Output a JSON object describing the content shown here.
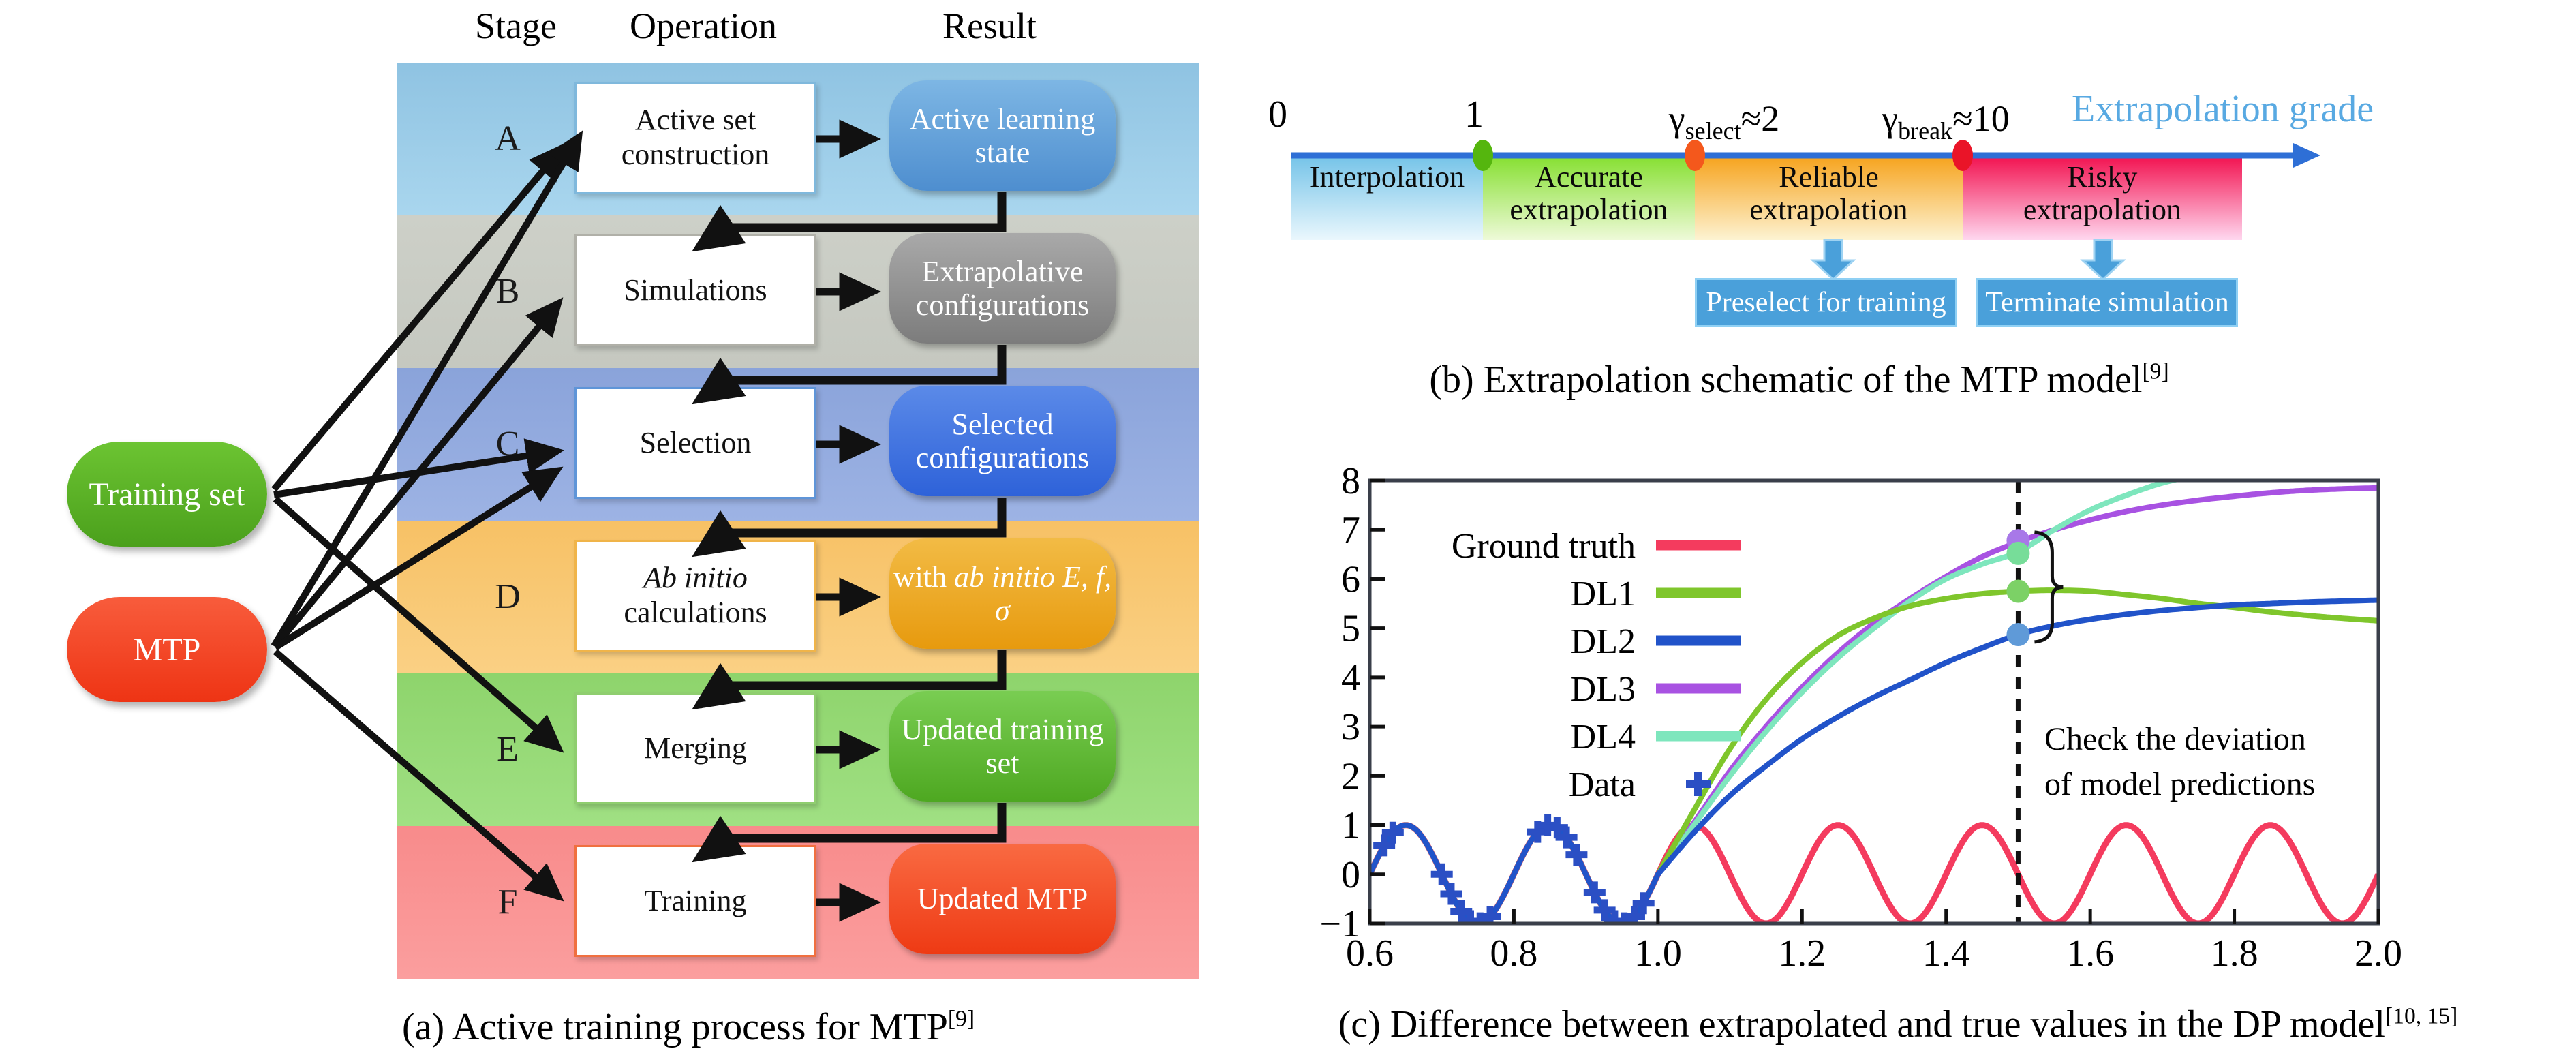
{
  "panel_a": {
    "caption": "(a) Active training process for MTP",
    "caption_ref": "[9]",
    "headers": {
      "stage": "Stage",
      "operation": "Operation",
      "result": "Result"
    },
    "inputs": [
      {
        "label": "Training set",
        "color": "#5cb82a"
      },
      {
        "label": "MTP",
        "color": "#f5472a"
      }
    ],
    "rows": [
      {
        "stage": "A",
        "operation": "Active set construction",
        "result": "Active learning state",
        "band_color": "#9ccbe6",
        "result_color": "#4e8ecf"
      },
      {
        "stage": "B",
        "operation": "Simulations",
        "result": "Extrapolative configurations",
        "band_color": "#c9ccc4",
        "result_color": "#7c7c7c"
      },
      {
        "stage": "C",
        "operation": "Selection",
        "result": "Selected configurations",
        "band_color": "#90a8dd",
        "result_color": "#2e62d9"
      },
      {
        "stage": "D",
        "operation_italic": "Ab initio",
        "operation": "calculations",
        "result_pre": "with",
        "result_italic": "ab initio",
        "result_math": "E, f, σ",
        "band_color": "#f8c870",
        "result_color": "#e79a0e"
      },
      {
        "stage": "E",
        "operation": "Merging",
        "result": "Updated training set",
        "band_color": "#97da78",
        "result_color": "#4ea821"
      },
      {
        "stage": "F",
        "operation": "Training",
        "result": "Updated MTP",
        "band_color": "#f99393",
        "result_color": "#ee3a14"
      }
    ]
  },
  "panel_b": {
    "caption": "(b) Extrapolation schematic of the MTP model",
    "caption_ref": "[9]",
    "axis_label": "Extrapolation grade",
    "axis_color": "#2e6fd6",
    "tick_zero": "0",
    "tick_one": "1",
    "gamma_select": {
      "symbol": "γ",
      "sub": "select",
      "value": "≈2"
    },
    "gamma_break": {
      "symbol": "γ",
      "sub": "break",
      "value": "≈10"
    },
    "zones": [
      {
        "line1": "Interpolation",
        "line2": "",
        "color": "#74c3e8"
      },
      {
        "line1": "Accurate",
        "line2": "extrapolation",
        "color": "#85df2f"
      },
      {
        "line1": "Reliable",
        "line2": "extrapolation",
        "color": "#f6a21b"
      },
      {
        "line1": "Risky",
        "line2": "extrapolation",
        "color": "#f2104e"
      }
    ],
    "markers": [
      {
        "at": "1",
        "color": "#55b60e"
      },
      {
        "at": "γ_select",
        "color": "#f4581c"
      },
      {
        "at": "γ_break",
        "color": "#ea1428"
      }
    ],
    "actions": [
      {
        "label": "Preselect for training"
      },
      {
        "label": "Terminate simulation"
      }
    ],
    "action_color": "#4aa0da"
  },
  "panel_c": {
    "caption": "(c) Difference between extrapolated and true values in the DP model",
    "caption_ref": "[10, 15]"
  },
  "chart_data": {
    "type": "line",
    "xlim": [
      0.6,
      2.0
    ],
    "ylim": [
      -1,
      8
    ],
    "x_ticks": [
      0.6,
      0.8,
      1.0,
      1.2,
      1.4,
      1.6,
      1.8,
      2.0
    ],
    "y_ticks": [
      -1,
      0,
      1,
      2,
      3,
      4,
      5,
      6,
      7,
      8
    ],
    "grid": false,
    "legend_position": "upper-left-inside",
    "ground_truth": {
      "name": "Ground truth",
      "color": "#f43b5e",
      "formula": "sin(10*pi*x)"
    },
    "series": [
      {
        "name": "DL1",
        "color": "#7fc62c",
        "sine_until": 1.0,
        "points": [
          [
            1.0,
            0
          ],
          [
            1.05,
            1.3
          ],
          [
            1.1,
            2.55
          ],
          [
            1.15,
            3.55
          ],
          [
            1.2,
            4.3
          ],
          [
            1.25,
            4.85
          ],
          [
            1.3,
            5.2
          ],
          [
            1.35,
            5.45
          ],
          [
            1.4,
            5.6
          ],
          [
            1.45,
            5.7
          ],
          [
            1.5,
            5.75
          ],
          [
            1.55,
            5.77
          ],
          [
            1.6,
            5.75
          ],
          [
            1.65,
            5.68
          ],
          [
            1.7,
            5.6
          ],
          [
            1.75,
            5.5
          ],
          [
            1.8,
            5.42
          ],
          [
            1.85,
            5.33
          ],
          [
            1.9,
            5.26
          ],
          [
            1.95,
            5.2
          ],
          [
            2.0,
            5.15
          ]
        ]
      },
      {
        "name": "DL2",
        "color": "#2153c9",
        "sine_until": 1.0,
        "points": [
          [
            1.0,
            0
          ],
          [
            1.05,
            0.85
          ],
          [
            1.1,
            1.6
          ],
          [
            1.15,
            2.2
          ],
          [
            1.2,
            2.75
          ],
          [
            1.25,
            3.2
          ],
          [
            1.3,
            3.6
          ],
          [
            1.35,
            3.95
          ],
          [
            1.4,
            4.3
          ],
          [
            1.45,
            4.6
          ],
          [
            1.5,
            4.87
          ],
          [
            1.55,
            5.05
          ],
          [
            1.6,
            5.18
          ],
          [
            1.65,
            5.28
          ],
          [
            1.7,
            5.36
          ],
          [
            1.75,
            5.42
          ],
          [
            1.8,
            5.47
          ],
          [
            1.85,
            5.5
          ],
          [
            1.9,
            5.53
          ],
          [
            1.95,
            5.55
          ],
          [
            2.0,
            5.57
          ]
        ]
      },
      {
        "name": "DL3",
        "color": "#a852e2",
        "sine_until": 1.0,
        "points": [
          [
            1.0,
            0
          ],
          [
            1.05,
            1.05
          ],
          [
            1.1,
            2.1
          ],
          [
            1.15,
            3.0
          ],
          [
            1.2,
            3.8
          ],
          [
            1.25,
            4.5
          ],
          [
            1.3,
            5.1
          ],
          [
            1.35,
            5.6
          ],
          [
            1.4,
            6.05
          ],
          [
            1.45,
            6.45
          ],
          [
            1.5,
            6.75
          ],
          [
            1.55,
            7.0
          ],
          [
            1.6,
            7.2
          ],
          [
            1.65,
            7.37
          ],
          [
            1.7,
            7.5
          ],
          [
            1.75,
            7.6
          ],
          [
            1.8,
            7.68
          ],
          [
            1.85,
            7.75
          ],
          [
            1.9,
            7.8
          ],
          [
            1.95,
            7.83
          ],
          [
            2.0,
            7.85
          ]
        ]
      },
      {
        "name": "DL4",
        "color": "#7ee6bd",
        "sine_until": 1.0,
        "points": [
          [
            1.0,
            0
          ],
          [
            1.05,
            1.0
          ],
          [
            1.1,
            2.0
          ],
          [
            1.15,
            2.9
          ],
          [
            1.2,
            3.7
          ],
          [
            1.25,
            4.4
          ],
          [
            1.3,
            5.0
          ],
          [
            1.35,
            5.55
          ],
          [
            1.4,
            6.0
          ],
          [
            1.45,
            6.3
          ],
          [
            1.5,
            6.55
          ],
          [
            1.55,
            7.0
          ],
          [
            1.6,
            7.4
          ],
          [
            1.65,
            7.7
          ],
          [
            1.7,
            7.95
          ],
          [
            1.75,
            8.12
          ],
          [
            1.8,
            8.35
          ]
        ]
      }
    ],
    "data_points": {
      "name": "Data",
      "color": "#2b4fc4",
      "x": [
        0.62,
        0.632,
        0.7,
        0.713,
        0.727,
        0.74,
        0.753,
        0.767,
        0.833,
        0.847,
        0.86,
        0.873,
        0.887,
        0.912,
        0.926,
        0.94,
        0.953,
        0.967,
        0.98
      ],
      "y_rule": "sin(10*pi*x)"
    },
    "check_line": {
      "x": 1.5,
      "style": "dashed"
    },
    "deviation_markers": [
      {
        "series": "DL3",
        "x": 1.5,
        "y": 6.78,
        "color": "#a878e8"
      },
      {
        "series": "DL4",
        "x": 1.5,
        "y": 6.52,
        "color": "#77dd99"
      },
      {
        "series": "DL1",
        "x": 1.5,
        "y": 5.75,
        "color": "#7cd166"
      },
      {
        "series": "DL2",
        "x": 1.5,
        "y": 4.87,
        "color": "#5f9ad8"
      }
    ],
    "annotation": {
      "line1": "Check the deviation",
      "line2": "of model predictions"
    }
  }
}
